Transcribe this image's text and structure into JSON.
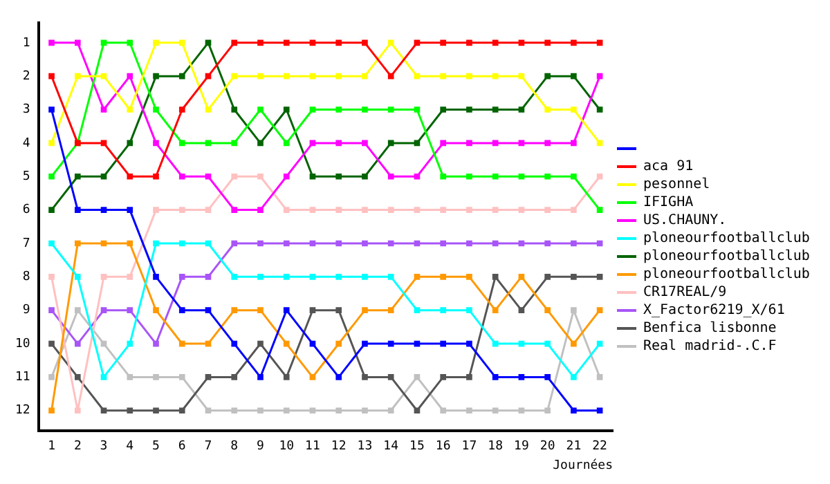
{
  "chart_data": {
    "type": "line",
    "xlabel": "Journées",
    "x": [
      1,
      2,
      3,
      4,
      5,
      6,
      7,
      8,
      9,
      10,
      11,
      12,
      13,
      14,
      15,
      16,
      17,
      18,
      19,
      20,
      21,
      22
    ],
    "xlim": [
      0.5,
      22.5
    ],
    "xticks": [
      1,
      2,
      3,
      4,
      5,
      6,
      7,
      8,
      9,
      10,
      11,
      12,
      13,
      14,
      15,
      16,
      17,
      18,
      19,
      20,
      21,
      22
    ],
    "ylim": [
      12.6,
      0.4
    ],
    "yticks": [
      1,
      2,
      3,
      4,
      5,
      6,
      7,
      8,
      9,
      10,
      11,
      12
    ],
    "grid": false,
    "legend": "right",
    "marker": "square",
    "line_style": "solid",
    "series": [
      {
        "color": "#0000ff",
        "values": [
          3,
          6,
          6,
          6,
          8,
          9,
          9,
          10,
          11,
          9,
          10,
          11,
          10,
          10,
          10,
          10,
          10,
          11,
          11,
          11,
          12,
          12
        ]
      },
      {
        "name": "aca 91",
        "color": "#ff0000",
        "values": [
          2,
          4,
          4,
          5,
          5,
          3,
          2,
          1,
          1,
          1,
          1,
          1,
          1,
          2,
          1,
          1,
          1,
          1,
          1,
          1,
          1,
          1
        ]
      },
      {
        "name": "pesonnel",
        "color": "#ffff00",
        "values": [
          4,
          2,
          2,
          3,
          1,
          1,
          3,
          2,
          2,
          2,
          2,
          2,
          2,
          1,
          2,
          2,
          2,
          2,
          2,
          3,
          3,
          4
        ]
      },
      {
        "name": "IFIGHA",
        "color": "#00ff00",
        "values": [
          5,
          4,
          1,
          1,
          3,
          4,
          4,
          4,
          3,
          4,
          3,
          3,
          3,
          3,
          3,
          5,
          5,
          5,
          5,
          5,
          5,
          6
        ]
      },
      {
        "name": "US.CHAUNY.",
        "color": "#ff00ff",
        "values": [
          1,
          1,
          3,
          2,
          4,
          5,
          5,
          6,
          6,
          5,
          4,
          4,
          4,
          5,
          5,
          4,
          4,
          4,
          4,
          4,
          4,
          2
        ]
      },
      {
        "name": "ploneourfootballclub",
        "color": "#00ffff",
        "values": [
          7,
          8,
          11,
          10,
          7,
          7,
          7,
          8,
          8,
          8,
          8,
          8,
          8,
          8,
          9,
          9,
          9,
          10,
          10,
          10,
          11,
          10
        ]
      },
      {
        "name": "ploneourfootballclub",
        "color": "#006400",
        "values": [
          6,
          5,
          5,
          4,
          2,
          2,
          1,
          3,
          4,
          3,
          5,
          5,
          5,
          4,
          4,
          3,
          3,
          3,
          3,
          2,
          2,
          3
        ]
      },
      {
        "name": "ploneourfootballclub",
        "color": "#ff9900",
        "values": [
          12,
          7,
          7,
          7,
          9,
          10,
          10,
          9,
          9,
          10,
          11,
          10,
          9,
          9,
          8,
          8,
          8,
          9,
          8,
          9,
          10,
          9
        ]
      },
      {
        "name": "CR17REAL/9",
        "color": "#ffc0c0",
        "values": [
          8,
          12,
          8,
          8,
          6,
          6,
          6,
          5,
          5,
          6,
          6,
          6,
          6,
          6,
          6,
          6,
          6,
          6,
          6,
          6,
          6,
          5
        ]
      },
      {
        "name": "X_Factor6219_X/61",
        "color": "#a855f7",
        "values": [
          9,
          10,
          9,
          9,
          10,
          8,
          8,
          7,
          7,
          7,
          7,
          7,
          7,
          7,
          7,
          7,
          7,
          7,
          7,
          7,
          7,
          7
        ]
      },
      {
        "name": "Benfica lisbonne",
        "color": "#555555",
        "values": [
          10,
          11,
          12,
          12,
          12,
          12,
          11,
          11,
          10,
          11,
          9,
          9,
          11,
          11,
          12,
          11,
          11,
          8,
          9,
          8,
          8,
          8
        ]
      },
      {
        "name": "Real madrid-.C.F",
        "color": "#c0c0c0",
        "values": [
          11,
          9,
          10,
          11,
          11,
          11,
          12,
          12,
          12,
          12,
          12,
          12,
          12,
          12,
          11,
          12,
          12,
          12,
          12,
          12,
          9,
          11
        ]
      }
    ]
  }
}
